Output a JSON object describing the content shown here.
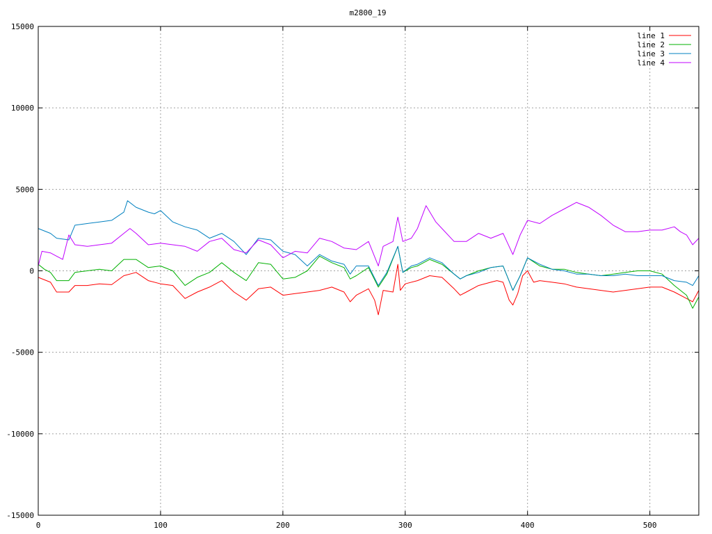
{
  "chart_data": {
    "type": "line",
    "title": "m2800_19",
    "xlabel": "",
    "ylabel": "",
    "xlim": [
      0,
      540
    ],
    "ylim": [
      -15000,
      15000
    ],
    "x_ticks": [
      0,
      100,
      200,
      300,
      400,
      500
    ],
    "y_ticks": [
      -15000,
      -10000,
      -5000,
      0,
      5000,
      10000,
      15000
    ],
    "grid": true,
    "legend_position": "top-right",
    "series": [
      {
        "name": "line 1",
        "color": "#ff0000",
        "points": [
          [
            0,
            -400
          ],
          [
            10,
            -700
          ],
          [
            15,
            -1300
          ],
          [
            25,
            -1300
          ],
          [
            30,
            -900
          ],
          [
            40,
            -900
          ],
          [
            50,
            -800
          ],
          [
            60,
            -850
          ],
          [
            70,
            -300
          ],
          [
            80,
            -100
          ],
          [
            90,
            -600
          ],
          [
            100,
            -800
          ],
          [
            110,
            -900
          ],
          [
            120,
            -1700
          ],
          [
            130,
            -1300
          ],
          [
            140,
            -1000
          ],
          [
            150,
            -600
          ],
          [
            160,
            -1300
          ],
          [
            170,
            -1800
          ],
          [
            180,
            -1100
          ],
          [
            190,
            -1000
          ],
          [
            200,
            -1500
          ],
          [
            210,
            -1400
          ],
          [
            220,
            -1300
          ],
          [
            230,
            -1200
          ],
          [
            240,
            -1000
          ],
          [
            250,
            -1300
          ],
          [
            255,
            -1900
          ],
          [
            260,
            -1500
          ],
          [
            270,
            -1100
          ],
          [
            275,
            -1800
          ],
          [
            278,
            -2700
          ],
          [
            282,
            -1200
          ],
          [
            290,
            -1300
          ],
          [
            294,
            400
          ],
          [
            296,
            -1200
          ],
          [
            300,
            -800
          ],
          [
            310,
            -600
          ],
          [
            320,
            -300
          ],
          [
            330,
            -400
          ],
          [
            340,
            -1100
          ],
          [
            345,
            -1500
          ],
          [
            350,
            -1300
          ],
          [
            360,
            -900
          ],
          [
            370,
            -700
          ],
          [
            375,
            -600
          ],
          [
            380,
            -700
          ],
          [
            385,
            -1800
          ],
          [
            388,
            -2100
          ],
          [
            392,
            -1400
          ],
          [
            396,
            -300
          ],
          [
            400,
            0
          ],
          [
            405,
            -700
          ],
          [
            410,
            -600
          ],
          [
            420,
            -700
          ],
          [
            430,
            -800
          ],
          [
            440,
            -1000
          ],
          [
            450,
            -1100
          ],
          [
            460,
            -1200
          ],
          [
            470,
            -1300
          ],
          [
            480,
            -1200
          ],
          [
            490,
            -1100
          ],
          [
            500,
            -1000
          ],
          [
            510,
            -1000
          ],
          [
            520,
            -1300
          ],
          [
            530,
            -1700
          ],
          [
            535,
            -1900
          ],
          [
            540,
            -1200
          ]
        ]
      },
      {
        "name": "line 2",
        "color": "#00b000",
        "points": [
          [
            0,
            400
          ],
          [
            5,
            100
          ],
          [
            10,
            -100
          ],
          [
            15,
            -600
          ],
          [
            25,
            -600
          ],
          [
            30,
            -100
          ],
          [
            40,
            0
          ],
          [
            50,
            100
          ],
          [
            60,
            0
          ],
          [
            70,
            700
          ],
          [
            80,
            700
          ],
          [
            90,
            200
          ],
          [
            100,
            300
          ],
          [
            110,
            0
          ],
          [
            120,
            -900
          ],
          [
            130,
            -400
          ],
          [
            140,
            -100
          ],
          [
            150,
            500
          ],
          [
            160,
            -100
          ],
          [
            170,
            -600
          ],
          [
            180,
            500
          ],
          [
            190,
            400
          ],
          [
            200,
            -500
          ],
          [
            210,
            -400
          ],
          [
            220,
            0
          ],
          [
            230,
            900
          ],
          [
            240,
            500
          ],
          [
            250,
            200
          ],
          [
            255,
            -500
          ],
          [
            260,
            -300
          ],
          [
            270,
            200
          ],
          [
            278,
            -1000
          ],
          [
            285,
            -200
          ],
          [
            294,
            1500
          ],
          [
            298,
            -100
          ],
          [
            305,
            200
          ],
          [
            310,
            300
          ],
          [
            320,
            700
          ],
          [
            330,
            400
          ],
          [
            340,
            -200
          ],
          [
            345,
            -500
          ],
          [
            350,
            -300
          ],
          [
            360,
            0
          ],
          [
            370,
            200
          ],
          [
            380,
            300
          ],
          [
            388,
            -1200
          ],
          [
            394,
            -300
          ],
          [
            400,
            800
          ],
          [
            410,
            300
          ],
          [
            420,
            100
          ],
          [
            430,
            100
          ],
          [
            440,
            -100
          ],
          [
            450,
            -200
          ],
          [
            460,
            -300
          ],
          [
            470,
            -200
          ],
          [
            480,
            -100
          ],
          [
            490,
            0
          ],
          [
            500,
            0
          ],
          [
            510,
            -200
          ],
          [
            520,
            -900
          ],
          [
            530,
            -1500
          ],
          [
            535,
            -2300
          ],
          [
            540,
            -1600
          ]
        ]
      },
      {
        "name": "line 3",
        "color": "#0080c0",
        "points": [
          [
            0,
            2600
          ],
          [
            10,
            2300
          ],
          [
            15,
            2000
          ],
          [
            25,
            1900
          ],
          [
            30,
            2800
          ],
          [
            40,
            2900
          ],
          [
            50,
            3000
          ],
          [
            60,
            3100
          ],
          [
            70,
            3600
          ],
          [
            73,
            4300
          ],
          [
            80,
            3900
          ],
          [
            90,
            3600
          ],
          [
            95,
            3500
          ],
          [
            100,
            3700
          ],
          [
            110,
            3000
          ],
          [
            120,
            2700
          ],
          [
            130,
            2500
          ],
          [
            140,
            2000
          ],
          [
            150,
            2300
          ],
          [
            160,
            1800
          ],
          [
            170,
            1000
          ],
          [
            180,
            2000
          ],
          [
            190,
            1900
          ],
          [
            200,
            1200
          ],
          [
            210,
            1000
          ],
          [
            220,
            300
          ],
          [
            230,
            1000
          ],
          [
            240,
            600
          ],
          [
            250,
            400
          ],
          [
            255,
            -200
          ],
          [
            260,
            300
          ],
          [
            270,
            300
          ],
          [
            278,
            -900
          ],
          [
            285,
            -100
          ],
          [
            294,
            1500
          ],
          [
            298,
            -100
          ],
          [
            305,
            300
          ],
          [
            310,
            400
          ],
          [
            320,
            800
          ],
          [
            330,
            500
          ],
          [
            340,
            -200
          ],
          [
            345,
            -500
          ],
          [
            350,
            -300
          ],
          [
            360,
            -100
          ],
          [
            370,
            200
          ],
          [
            380,
            300
          ],
          [
            388,
            -1200
          ],
          [
            394,
            -300
          ],
          [
            400,
            800
          ],
          [
            410,
            400
          ],
          [
            420,
            100
          ],
          [
            430,
            0
          ],
          [
            440,
            -200
          ],
          [
            450,
            -200
          ],
          [
            460,
            -300
          ],
          [
            470,
            -300
          ],
          [
            480,
            -200
          ],
          [
            490,
            -300
          ],
          [
            500,
            -300
          ],
          [
            510,
            -300
          ],
          [
            520,
            -600
          ],
          [
            530,
            -700
          ],
          [
            535,
            -900
          ],
          [
            540,
            -300
          ]
        ]
      },
      {
        "name": "line 4",
        "color": "#c000ff",
        "points": [
          [
            0,
            300
          ],
          [
            3,
            1200
          ],
          [
            10,
            1100
          ],
          [
            15,
            900
          ],
          [
            20,
            700
          ],
          [
            25,
            2200
          ],
          [
            30,
            1600
          ],
          [
            40,
            1500
          ],
          [
            50,
            1600
          ],
          [
            60,
            1700
          ],
          [
            70,
            2300
          ],
          [
            75,
            2600
          ],
          [
            80,
            2300
          ],
          [
            90,
            1600
          ],
          [
            100,
            1700
          ],
          [
            110,
            1600
          ],
          [
            120,
            1500
          ],
          [
            130,
            1200
          ],
          [
            140,
            1800
          ],
          [
            150,
            2000
          ],
          [
            160,
            1300
          ],
          [
            170,
            1100
          ],
          [
            180,
            1900
          ],
          [
            190,
            1600
          ],
          [
            200,
            800
          ],
          [
            210,
            1200
          ],
          [
            220,
            1100
          ],
          [
            230,
            2000
          ],
          [
            240,
            1800
          ],
          [
            250,
            1400
          ],
          [
            260,
            1300
          ],
          [
            270,
            1800
          ],
          [
            278,
            300
          ],
          [
            282,
            1500
          ],
          [
            290,
            1800
          ],
          [
            294,
            3300
          ],
          [
            298,
            1800
          ],
          [
            305,
            2000
          ],
          [
            310,
            2600
          ],
          [
            317,
            4000
          ],
          [
            325,
            3000
          ],
          [
            330,
            2600
          ],
          [
            340,
            1800
          ],
          [
            350,
            1800
          ],
          [
            360,
            2300
          ],
          [
            370,
            2000
          ],
          [
            380,
            2300
          ],
          [
            388,
            1000
          ],
          [
            394,
            2200
          ],
          [
            400,
            3100
          ],
          [
            410,
            2900
          ],
          [
            420,
            3400
          ],
          [
            430,
            3800
          ],
          [
            440,
            4200
          ],
          [
            450,
            3900
          ],
          [
            460,
            3400
          ],
          [
            470,
            2800
          ],
          [
            480,
            2400
          ],
          [
            490,
            2400
          ],
          [
            500,
            2500
          ],
          [
            510,
            2500
          ],
          [
            520,
            2700
          ],
          [
            525,
            2400
          ],
          [
            530,
            2200
          ],
          [
            535,
            1600
          ],
          [
            540,
            2000
          ]
        ]
      }
    ]
  }
}
